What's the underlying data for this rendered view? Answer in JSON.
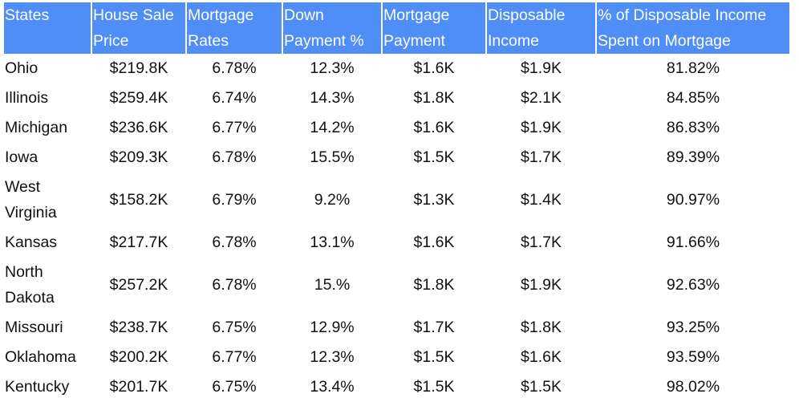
{
  "chart_data": {
    "type": "table",
    "columns": [
      "States",
      "House Sale Price",
      "Mortgage Rates",
      "Down Payment %",
      "Mortgage Payment",
      "Disposable Income",
      "% of Disposable Income Spent on Mortgage"
    ],
    "rows": [
      [
        "Ohio",
        "$219.8K",
        "6.78%",
        "12.3%",
        "$1.6K",
        "$1.9K",
        "81.82%"
      ],
      [
        "Illinois",
        "$259.4K",
        "6.74%",
        "14.3%",
        "$1.8K",
        "$2.1K",
        "84.85%"
      ],
      [
        "Michigan",
        "$236.6K",
        "6.77%",
        "14.2%",
        "$1.6K",
        "$1.9K",
        "86.83%"
      ],
      [
        "Iowa",
        "$209.3K",
        "6.78%",
        "15.5%",
        "$1.5K",
        "$1.7K",
        "89.39%"
      ],
      [
        "West Virginia",
        "$158.2K",
        "6.79%",
        "9.2%",
        "$1.3K",
        "$1.4K",
        "90.97%"
      ],
      [
        "Kansas",
        "$217.7K",
        "6.78%",
        "13.1%",
        "$1.6K",
        "$1.7K",
        "91.66%"
      ],
      [
        "North Dakota",
        "$257.2K",
        "6.78%",
        "15.%",
        "$1.8K",
        "$1.9K",
        "92.63%"
      ],
      [
        "Missouri",
        "$238.7K",
        "6.75%",
        "12.9%",
        "$1.7K",
        "$1.8K",
        "93.25%"
      ],
      [
        "Oklahoma",
        "$200.2K",
        "6.77%",
        "12.3%",
        "$1.5K",
        "$1.6K",
        "93.59%"
      ],
      [
        "Kentucky",
        "$201.7K",
        "6.75%",
        "13.4%",
        "$1.5K",
        "$1.5K",
        "98.02%"
      ]
    ]
  },
  "colors": {
    "header_bg": "#4f8ef7",
    "header_text": "#ffffff",
    "cell_text": "#111111"
  }
}
